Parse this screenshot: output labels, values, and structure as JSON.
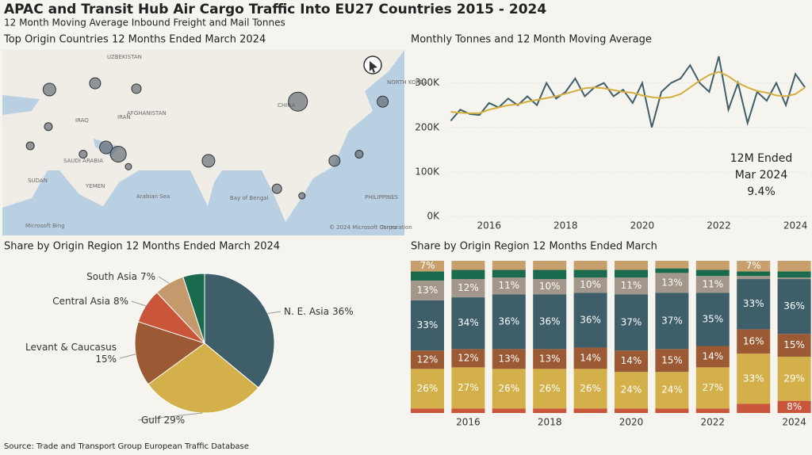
{
  "title": "APAC and Transit Hub Air Cargo Traffic Into EU27 Countries 2015 - 2024",
  "subtitle": "12 Month Moving Average Inbound Freight and Mail Tonnes",
  "source": "Source: Trade and Transport Group European Traffic Database",
  "chart_data": [
    {
      "type": "map",
      "title": "Top Origin Countries 12 Months Ended March 2024",
      "xlim": [
        24,
        135
      ],
      "ylim": [
        3.5,
        48
      ],
      "color": "#5b6670",
      "x": [
        37,
        49.6,
        61,
        105.6,
        129,
        36.7,
        31.7,
        46.3,
        52.6,
        56,
        58.8,
        80.9,
        115.7,
        122.5,
        99.8,
        106.7
      ],
      "y": [
        38.5,
        40,
        38.7,
        35.6,
        35.6,
        29.6,
        25,
        23,
        24.6,
        23,
        20,
        21.4,
        21.4,
        23,
        14.7,
        13
      ],
      "size": [
        64,
        49,
        36,
        144,
        49,
        25,
        25,
        25,
        64,
        100,
        16,
        64,
        49,
        25,
        36,
        16
      ],
      "labels": [
        "UZBEKISTAN",
        "AFGHANISTAN",
        "IRAN",
        "IRAQ",
        "SAUDI ARABIA",
        "YEMEN",
        "SUDAN",
        "CHINA",
        "NORTH KOREA",
        "Arabian Sea",
        "Bay of Bengal",
        "PHILIPPINES",
        "Microsoft Bing",
        "© 2024 Microsoft Corporation",
        "Terms"
      ]
    },
    {
      "type": "line",
      "title": "Monthly Tonnes and 12 Month Moving Average",
      "annotation": [
        "12M Ended",
        "Mar 2024",
        "9.4%"
      ],
      "x": [
        2015,
        2015.25,
        2015.5,
        2015.75,
        2016,
        2016.25,
        2016.5,
        2016.75,
        2017,
        2017.25,
        2017.5,
        2017.75,
        2018,
        2018.25,
        2018.5,
        2018.75,
        2019,
        2019.25,
        2019.5,
        2019.75,
        2020,
        2020.25,
        2020.5,
        2020.75,
        2021,
        2021.25,
        2021.5,
        2021.75,
        2022,
        2022.25,
        2022.5,
        2022.75,
        2023,
        2023.25,
        2023.5,
        2023.75,
        2024,
        2024.25
      ],
      "xlim": [
        2014.95,
        2024.3
      ],
      "xticks": [
        2016,
        2018,
        2020,
        2022,
        2024
      ],
      "ylim": [
        0,
        360000
      ],
      "yticks": [
        {
          "value": 0,
          "label": "0K"
        },
        {
          "value": 100000,
          "label": "100K"
        },
        {
          "value": 200000,
          "label": "200K"
        },
        {
          "value": 300000,
          "label": "300K"
        }
      ],
      "series": [
        {
          "color": "#3e5f6a",
          "values": [
            215000,
            240000,
            230000,
            228000,
            255000,
            245000,
            265000,
            250000,
            270000,
            250000,
            300000,
            265000,
            280000,
            310000,
            270000,
            290000,
            300000,
            270000,
            285000,
            255000,
            300000,
            200000,
            280000,
            300000,
            310000,
            340000,
            300000,
            280000,
            360000,
            240000,
            300000,
            210000,
            280000,
            260000,
            300000,
            250000,
            320000,
            290000
          ]
        },
        {
          "color": "#d4ae3f",
          "values": [
            235000,
            233000,
            232000,
            232000,
            240000,
            245000,
            250000,
            252000,
            258000,
            262000,
            266000,
            270000,
            276000,
            282000,
            288000,
            290000,
            288000,
            284000,
            280000,
            278000,
            272000,
            268000,
            266000,
            268000,
            275000,
            290000,
            305000,
            318000,
            325000,
            315000,
            300000,
            290000,
            282000,
            278000,
            272000,
            270000,
            275000,
            290000
          ]
        }
      ]
    },
    {
      "type": "pie",
      "title": "Share by Origin Region 12 Months Ended March 2024",
      "categories": [
        "N. E. Asia",
        "Gulf",
        "Levant & Caucasus",
        "Central Asia",
        "South Asia",
        null
      ],
      "values": [
        36,
        29,
        15,
        8,
        7,
        5
      ],
      "value_labels": [
        "36%",
        "29%",
        "15%",
        "8%",
        "7%",
        null
      ],
      "colors": [
        "#3e5f6a",
        "#d4b04a",
        "#9b5a33",
        "#c9553a",
        "#c49a6c",
        "#1a6b4d"
      ]
    },
    {
      "type": "stacked_bar",
      "title": "Share by Origin Region 12 Months Ended March",
      "categories": [
        null,
        "2016",
        null,
        "2018",
        null,
        "2020",
        null,
        "2022",
        null,
        "2024"
      ],
      "series": [
        {
          "color": "#c9553a",
          "values": [
            3,
            3,
            3,
            3,
            3,
            3,
            3,
            3,
            6,
            8
          ],
          "value_labels": [
            null,
            null,
            null,
            null,
            null,
            null,
            null,
            null,
            null,
            "8%"
          ]
        },
        {
          "color": "#d4b04a",
          "values": [
            26,
            27,
            26,
            26,
            26,
            24,
            24,
            27,
            33,
            29
          ],
          "value_labels": [
            "26%",
            "27%",
            "26%",
            "26%",
            "26%",
            "24%",
            "24%",
            "27%",
            "33%",
            "29%"
          ]
        },
        {
          "color": "#9b5a33",
          "values": [
            12,
            12,
            13,
            13,
            14,
            14,
            15,
            14,
            16,
            15
          ],
          "value_labels": [
            "12%",
            "12%",
            "13%",
            "13%",
            "14%",
            "14%",
            "15%",
            "14%",
            "16%",
            "15%"
          ]
        },
        {
          "color": "#3e5f6a",
          "values": [
            33,
            34,
            36,
            36,
            36,
            37,
            37,
            35,
            33,
            36
          ],
          "value_labels": [
            "33%",
            "34%",
            "36%",
            "36%",
            "36%",
            "37%",
            "37%",
            "35%",
            "33%",
            "36%"
          ]
        },
        {
          "color": "#a3978b",
          "values": [
            13,
            12,
            11,
            10,
            10,
            11,
            13,
            11,
            2,
            1
          ],
          "value_labels": [
            "13%",
            "12%",
            "11%",
            "10%",
            "10%",
            "11%",
            "13%",
            "11%",
            null,
            null
          ]
        },
        {
          "color": "#1a6b4d",
          "values": [
            6,
            6,
            5,
            6,
            5,
            5,
            3,
            4,
            3,
            4
          ],
          "value_labels": [
            null,
            null,
            null,
            null,
            null,
            null,
            null,
            null,
            null,
            null
          ]
        },
        {
          "color": "#c8a06e",
          "values": [
            7,
            6,
            6,
            6,
            6,
            6,
            5,
            6,
            7,
            7
          ],
          "value_labels": [
            "7%",
            null,
            null,
            null,
            null,
            null,
            null,
            null,
            "7%",
            null
          ]
        }
      ]
    }
  ]
}
